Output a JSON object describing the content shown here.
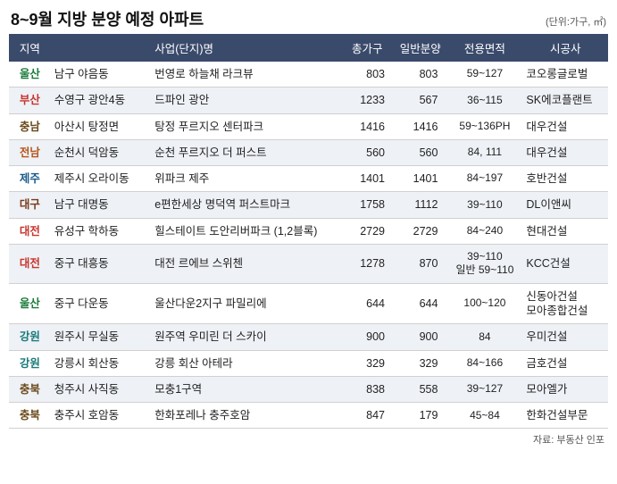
{
  "title": "8~9월 지방 분양 예정 아파트",
  "unit": "(단위:가구, ㎡)",
  "source": "자료: 부동산 인포",
  "region_colors": {
    "울산": "c-ulsan",
    "부산": "c-busan",
    "충남": "c-chungnam",
    "전남": "c-jeonnam",
    "제주": "c-jeju",
    "대구": "c-daegu",
    "대전": "c-daejeon",
    "강원": "c-gangwon",
    "충북": "c-chungbuk"
  },
  "columns": [
    "지역",
    "",
    "사업(단지)명",
    "총가구",
    "일반분양",
    "전용면적",
    "시공사"
  ],
  "rows": [
    {
      "region": "울산",
      "district": "남구 야음동",
      "project": "번영로 하늘채 라크뷰",
      "total": "803",
      "general": "803",
      "area": "59~127",
      "builder": "코오롱글로벌"
    },
    {
      "region": "부산",
      "district": "수영구 광안4동",
      "project": "드파인 광안",
      "total": "1233",
      "general": "567",
      "area": "36~115",
      "builder": "SK에코플랜트"
    },
    {
      "region": "충남",
      "district": "아산시 탕정면",
      "project": "탕정 푸르지오 센터파크",
      "total": "1416",
      "general": "1416",
      "area": "59~136PH",
      "builder": "대우건설"
    },
    {
      "region": "전남",
      "district": "순천시 덕암동",
      "project": "순천 푸르지오 더 퍼스트",
      "total": "560",
      "general": "560",
      "area": "84, 111",
      "builder": "대우건설"
    },
    {
      "region": "제주",
      "district": "제주시 오라이동",
      "project": "위파크 제주",
      "total": "1401",
      "general": "1401",
      "area": "84~197",
      "builder": "호반건설"
    },
    {
      "region": "대구",
      "district": "남구 대명동",
      "project": "e편한세상 명덕역 퍼스트마크",
      "total": "1758",
      "general": "1112",
      "area": "39~110",
      "builder": "DL이앤씨"
    },
    {
      "region": "대전",
      "district": "유성구 학하동",
      "project": "힐스테이트 도안리버파크 (1,2블록)",
      "total": "2729",
      "general": "2729",
      "area": "84~240",
      "builder": "현대건설"
    },
    {
      "region": "대전",
      "district": "중구 대흥동",
      "project": "대전 르에브 스위첸",
      "total": "1278",
      "general": "870",
      "area": "39~110\n일반 59~110",
      "builder": "KCC건설"
    },
    {
      "region": "울산",
      "district": "중구 다운동",
      "project": "울산다운2지구 파밀리에",
      "total": "644",
      "general": "644",
      "area": "100~120",
      "builder": "신동아건설\n모아종합건설"
    },
    {
      "region": "강원",
      "district": "원주시 무실동",
      "project": "원주역 우미린 더 스카이",
      "total": "900",
      "general": "900",
      "area": "84",
      "builder": "우미건설"
    },
    {
      "region": "강원",
      "district": "강릉시 회산동",
      "project": "강릉 회산 아테라",
      "total": "329",
      "general": "329",
      "area": "84~166",
      "builder": "금호건설"
    },
    {
      "region": "충북",
      "district": "청주시 사직동",
      "project": "모충1구역",
      "total": "838",
      "general": "558",
      "area": "39~127",
      "builder": "모아엘가"
    },
    {
      "region": "충북",
      "district": "충주시 호암동",
      "project": "한화포레나 충주호암",
      "total": "847",
      "general": "179",
      "area": "45~84",
      "builder": "한화건설부문"
    }
  ]
}
